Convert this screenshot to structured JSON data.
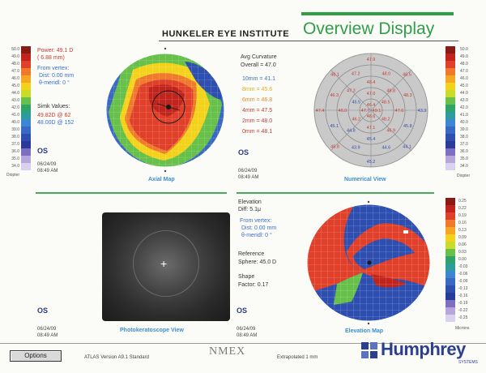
{
  "header": {
    "institute": "HUNKELER EYE INSTITUTE",
    "title": "Overview Display"
  },
  "colors": {
    "accent_green": "#2e9f45",
    "text_red": "#c83a35",
    "text_blue": "#3c6fc7",
    "brand_blue": "#2c3f8e",
    "scale": [
      "#8a1a14",
      "#c0241c",
      "#e0402a",
      "#f07a2c",
      "#f5a623",
      "#f2d21a",
      "#c8dc2a",
      "#66c04a",
      "#2ea46a",
      "#2c9c9c",
      "#3c86d2",
      "#3a68c4",
      "#2f4fb0",
      "#2a3a98",
      "#7f6fc0",
      "#b5a7dc",
      "#d8d2ee"
    ]
  },
  "left_scale": {
    "labels": [
      "50.0",
      "49.0",
      "48.0",
      "47.0",
      "46.0",
      "45.0",
      "44.0",
      "43.0",
      "42.0",
      "41.0",
      "40.0",
      "39.0",
      "38.0",
      "37.0",
      "36.0",
      "35.0",
      "34.0"
    ],
    "unit": "Diopter"
  },
  "right_scale": {
    "labels": [
      "50.0",
      "49.0",
      "48.0",
      "47.0",
      "46.0",
      "45.0",
      "44.0",
      "43.0",
      "42.0",
      "41.0",
      "40.0",
      "39.0",
      "38.0",
      "37.0",
      "36.0",
      "35.0",
      "34.0"
    ],
    "unit": "Diopter"
  },
  "right_scale_2": {
    "labels": [
      "0.25",
      "0.22",
      "0.19",
      "0.16",
      "0.13",
      "0.09",
      "0.06",
      "0.03",
      "0.00",
      "-0.03",
      "-0.06",
      "-0.09",
      "-0.13",
      "-0.16",
      "-0.19",
      "-0.22",
      "-0.25"
    ],
    "unit": "Microns"
  },
  "axial": {
    "power": "Power: 49.1 D",
    "power_mm": "( 6.88 mm)",
    "from_vertex": "From vertex:",
    "dist": "Dist: 0.00 mm",
    "angle": "θ-meridl: 0 °",
    "simk_label": "Simk Values:",
    "simk1": "49.82D @ 62",
    "simk2": "48.00D @ 152",
    "eye": "OS",
    "date": "06/24/09",
    "time": "08:49 AM",
    "caption": "Axial Map"
  },
  "numerical": {
    "avg_label": "Avg Curvature",
    "overall": "Overall = 47.0",
    "rings": [
      "10mm = 41.1",
      "8mm = 45.6",
      "6mm = 46.8",
      "4mm = 47.5",
      "2mm = 48.0",
      "0mm = 48.1"
    ],
    "eye": "OS",
    "date": "06/24/09",
    "time": "08:49 AM",
    "caption": "Numerical View",
    "values": [
      "43.3",
      "44.1",
      "45.2",
      "46.8",
      "47.4",
      "48.1",
      "47.9",
      "46.5",
      "45.8",
      "44.6",
      "43.9",
      "45.1",
      "46.3",
      "47.2",
      "48.0",
      "48.3",
      "47.6",
      "46.9",
      "45.4",
      "44.8",
      "46.0",
      "47.3",
      "48.4",
      "48.8",
      "48.2",
      "47.1",
      "46.2",
      "45.5",
      "47.0",
      "48.5",
      "49.1",
      "48.6",
      "47.7",
      "46.4"
    ]
  },
  "elevation": {
    "label": "Elevation",
    "diff": "Diff: 5.1μ",
    "from_vertex": "From vertex:",
    "dist": "Dist: 0.00 mm",
    "angle": "θ-meridl: 0 °",
    "ref_label": "Reference",
    "sphere": "Sphere: 45.0 D",
    "shape_label": "Shape",
    "factor": "Factor: 0.17",
    "eye": "OS",
    "date": "06/24/09",
    "time": "08:49 AM",
    "caption": "Elevation Map"
  },
  "photo": {
    "eye": "OS",
    "date": "06/24/09",
    "time": "08:49 AM",
    "caption": "Photokeratoscope View"
  },
  "footer": {
    "options_label": "Options",
    "version": "ATLAS  Version A9.1  Standard",
    "extrapolated": "Extrapolated 1 mm",
    "watermark": "NMEX",
    "brand": "Humphrey",
    "brand_sub": "SYSTEMS"
  }
}
